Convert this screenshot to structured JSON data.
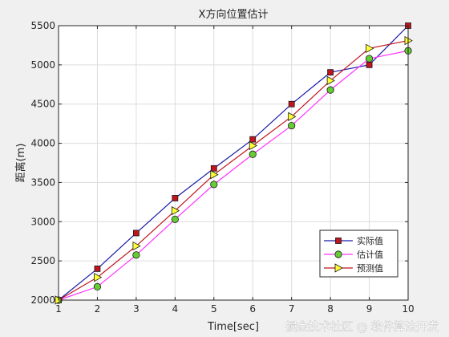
{
  "chart_data": {
    "type": "line",
    "title": "X方向位置估计",
    "xlabel": "Time[sec]",
    "ylabel": "距离(m)",
    "xlim": [
      1,
      10
    ],
    "ylim": [
      2000,
      5500
    ],
    "xticks": [
      "1",
      "2",
      "3",
      "4",
      "5",
      "6",
      "7",
      "8",
      "9",
      "10"
    ],
    "yticks": [
      "2000",
      "2500",
      "3000",
      "3500",
      "4000",
      "4500",
      "5000",
      "5500"
    ],
    "grid": true,
    "legend_position": "bottom-right",
    "x": [
      1,
      2,
      3,
      4,
      5,
      6,
      7,
      8,
      9,
      10
    ],
    "series": [
      {
        "name": "实际值",
        "color": "#1a1aa6",
        "marker": "square",
        "marker_fill": "#c0141e",
        "values": [
          2000,
          2400,
          2855,
          3300,
          3680,
          4050,
          4500,
          4905,
          5000,
          5500
        ]
      },
      {
        "name": "估计值",
        "color": "#ff33ff",
        "marker": "circle",
        "marker_fill": "#66cc33",
        "values": [
          2000,
          2170,
          2575,
          3030,
          3475,
          3860,
          4225,
          4680,
          5080,
          5180
        ]
      },
      {
        "name": "预测值",
        "color": "#c0141e",
        "marker": "triangle",
        "marker_fill": "#ffff33",
        "values": [
          2000,
          2290,
          2690,
          3140,
          3600,
          3970,
          4340,
          4800,
          5210,
          5310
        ]
      }
    ]
  },
  "watermark": "掘金技术社区 @ 软件算法开发"
}
